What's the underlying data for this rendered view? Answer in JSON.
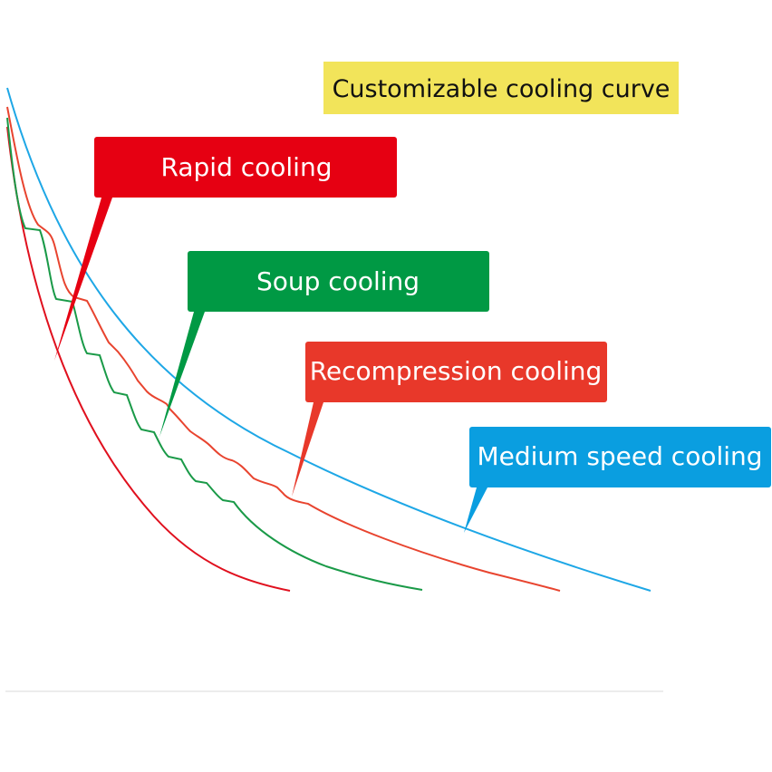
{
  "header": {
    "title": "Customizable cooling curve",
    "title_bg": "#f2e45a"
  },
  "callouts": {
    "rapid": {
      "label": "Rapid cooling",
      "color": "#e60012"
    },
    "soup": {
      "label": "Soup cooling",
      "color": "#009944"
    },
    "recompression": {
      "label": "Recompression cooling",
      "color": "#e8382a"
    },
    "medium": {
      "label": "Medium speed cooling",
      "color": "#0a9ee0"
    }
  },
  "curve_colors": {
    "rapid": "#e0101e",
    "soup": "#1a9a48",
    "recompression": "#e8442f",
    "medium": "#1ea7e6"
  },
  "baseline_color": "#e6e6e6"
}
